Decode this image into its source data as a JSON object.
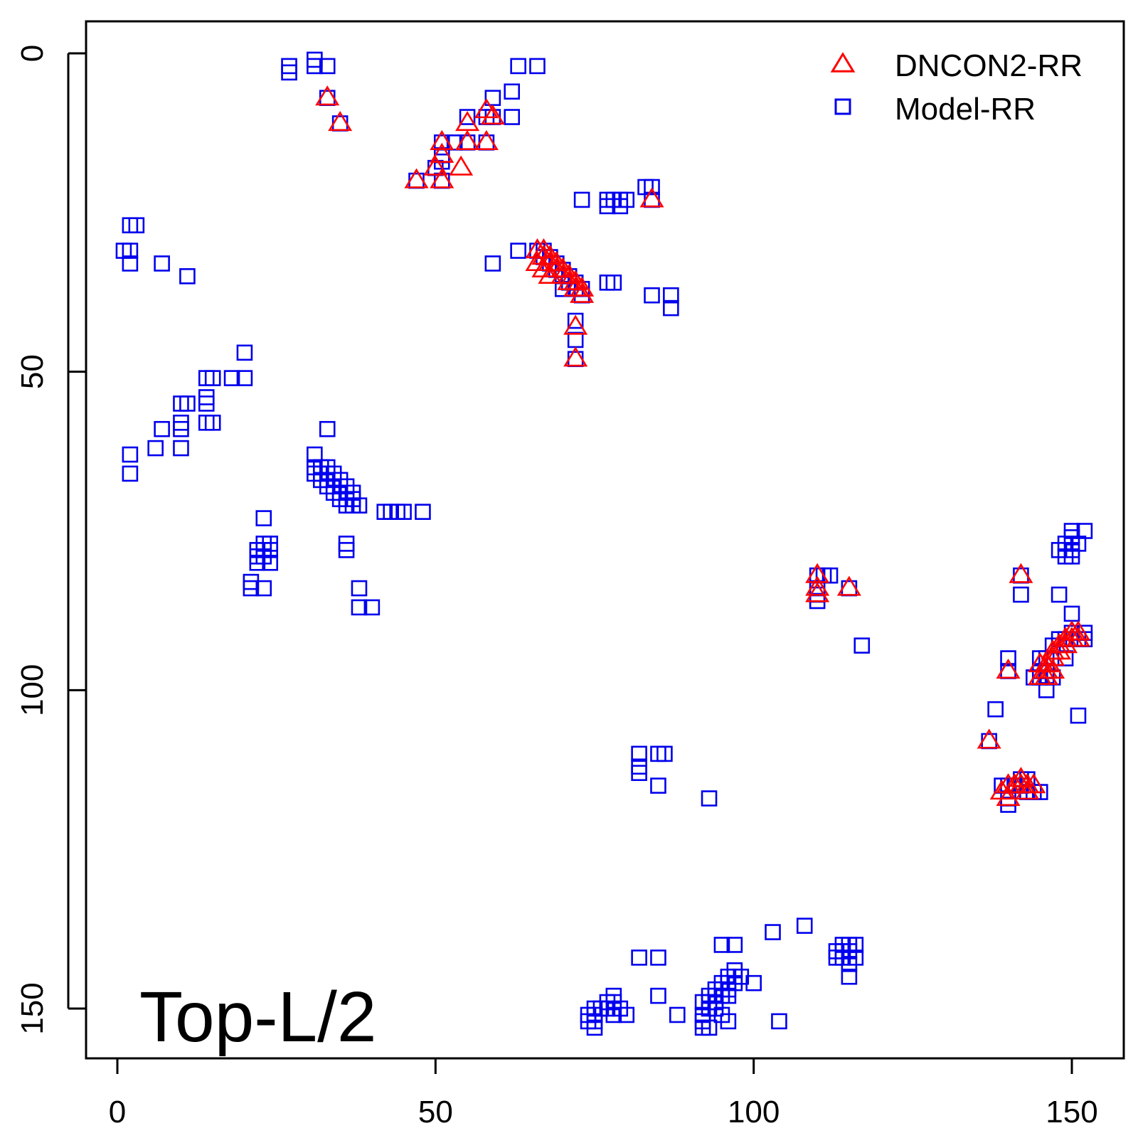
{
  "chart_data": {
    "type": "scatter",
    "title": "",
    "xlabel": "",
    "ylabel": "",
    "xlim": [
      -5,
      158
    ],
    "ylim": [
      -5,
      158
    ],
    "y_axis_reversed": true,
    "x_ticks": [
      0,
      50,
      100,
      150
    ],
    "y_ticks": [
      0,
      50,
      100,
      150
    ],
    "x_tick_labels": [
      "0",
      "50",
      "100",
      "150"
    ],
    "y_tick_labels": [
      "0",
      "50",
      "100",
      "150"
    ],
    "grid": false,
    "legend_position": "top-right",
    "annotation": "Top-L/2",
    "series": [
      {
        "name": "DNCON2-RR",
        "marker": "triangle",
        "color": "#ff0000",
        "points": [
          [
            33,
            7
          ],
          [
            35,
            11
          ],
          [
            51,
            14
          ],
          [
            51,
            16
          ],
          [
            55,
            11
          ],
          [
            55,
            14
          ],
          [
            58,
            9
          ],
          [
            59,
            10
          ],
          [
            58,
            14
          ],
          [
            50,
            18
          ],
          [
            51,
            20
          ],
          [
            54,
            18
          ],
          [
            47,
            20
          ],
          [
            84,
            23
          ],
          [
            66,
            31
          ],
          [
            67,
            31
          ],
          [
            67,
            32
          ],
          [
            68,
            32
          ],
          [
            68,
            33
          ],
          [
            69,
            33
          ],
          [
            69,
            34
          ],
          [
            70,
            34
          ],
          [
            70,
            35
          ],
          [
            71,
            35
          ],
          [
            71,
            36
          ],
          [
            72,
            36
          ],
          [
            72,
            37
          ],
          [
            73,
            37
          ],
          [
            73,
            38
          ],
          [
            66,
            33
          ],
          [
            67,
            34
          ],
          [
            68,
            35
          ],
          [
            72,
            43
          ],
          [
            72,
            48
          ],
          [
            110,
            82
          ],
          [
            110,
            84
          ],
          [
            110,
            85
          ],
          [
            115,
            84
          ],
          [
            142,
            82
          ],
          [
            140,
            97
          ],
          [
            137,
            108
          ],
          [
            145,
            96
          ],
          [
            146,
            96
          ],
          [
            146,
            97
          ],
          [
            147,
            95
          ],
          [
            147,
            94
          ],
          [
            148,
            93
          ],
          [
            148,
            94
          ],
          [
            149,
            92
          ],
          [
            149,
            93
          ],
          [
            150,
            91
          ],
          [
            150,
            92
          ],
          [
            151,
            91
          ],
          [
            151,
            92
          ],
          [
            146,
            98
          ],
          [
            145,
            98
          ],
          [
            147,
            97
          ],
          [
            139,
            116
          ],
          [
            140,
            115
          ],
          [
            141,
            115
          ],
          [
            142,
            114
          ],
          [
            142,
            115
          ],
          [
            143,
            115
          ],
          [
            143,
            116
          ],
          [
            140,
            117
          ],
          [
            144,
            115
          ]
        ]
      },
      {
        "name": "Model-RR",
        "marker": "square",
        "color": "#0000ee",
        "points": [
          [
            27,
            2
          ],
          [
            27,
            3
          ],
          [
            31,
            1
          ],
          [
            31,
            2
          ],
          [
            33,
            2
          ],
          [
            33,
            7
          ],
          [
            35,
            11
          ],
          [
            63,
            2
          ],
          [
            66,
            2
          ],
          [
            62,
            6
          ],
          [
            59,
            7
          ],
          [
            59,
            10
          ],
          [
            62,
            10
          ],
          [
            55,
            10
          ],
          [
            55,
            14
          ],
          [
            58,
            10
          ],
          [
            58,
            14
          ],
          [
            51,
            14
          ],
          [
            51,
            16
          ],
          [
            53,
            14
          ],
          [
            51,
            17
          ],
          [
            50,
            18
          ],
          [
            51,
            20
          ],
          [
            47,
            20
          ],
          [
            73,
            23
          ],
          [
            77,
            23
          ],
          [
            77,
            24
          ],
          [
            78,
            23
          ],
          [
            79,
            23
          ],
          [
            79,
            24
          ],
          [
            80,
            23
          ],
          [
            83,
            21
          ],
          [
            84,
            21
          ],
          [
            84,
            23
          ],
          [
            2,
            27
          ],
          [
            3,
            27
          ],
          [
            1,
            31
          ],
          [
            2,
            31
          ],
          [
            2,
            33
          ],
          [
            7,
            33
          ],
          [
            11,
            35
          ],
          [
            63,
            31
          ],
          [
            59,
            33
          ],
          [
            66,
            31
          ],
          [
            67,
            31
          ],
          [
            67,
            32
          ],
          [
            68,
            32
          ],
          [
            68,
            33
          ],
          [
            69,
            33
          ],
          [
            69,
            34
          ],
          [
            70,
            34
          ],
          [
            70,
            35
          ],
          [
            71,
            35
          ],
          [
            71,
            36
          ],
          [
            72,
            36
          ],
          [
            72,
            37
          ],
          [
            73,
            37
          ],
          [
            73,
            38
          ],
          [
            70,
            37
          ],
          [
            77,
            36
          ],
          [
            78,
            36
          ],
          [
            84,
            38
          ],
          [
            87,
            38
          ],
          [
            87,
            40
          ],
          [
            72,
            42
          ],
          [
            72,
            45
          ],
          [
            72,
            48
          ],
          [
            20,
            47
          ],
          [
            14,
            51
          ],
          [
            15,
            51
          ],
          [
            18,
            51
          ],
          [
            20,
            51
          ],
          [
            10,
            55
          ],
          [
            11,
            55
          ],
          [
            14,
            54
          ],
          [
            14,
            55
          ],
          [
            10,
            58
          ],
          [
            14,
            58
          ],
          [
            15,
            58
          ],
          [
            7,
            59
          ],
          [
            10,
            59
          ],
          [
            6,
            62
          ],
          [
            10,
            62
          ],
          [
            2,
            63
          ],
          [
            2,
            66
          ],
          [
            33,
            59
          ],
          [
            31,
            63
          ],
          [
            31,
            65
          ],
          [
            32,
            65
          ],
          [
            33,
            65
          ],
          [
            31,
            66
          ],
          [
            32,
            66
          ],
          [
            33,
            66
          ],
          [
            34,
            66
          ],
          [
            32,
            67
          ],
          [
            33,
            67
          ],
          [
            35,
            67
          ],
          [
            33,
            68
          ],
          [
            34,
            68
          ],
          [
            36,
            68
          ],
          [
            34,
            69
          ],
          [
            35,
            69
          ],
          [
            37,
            69
          ],
          [
            35,
            70
          ],
          [
            36,
            70
          ],
          [
            37,
            70
          ],
          [
            36,
            71
          ],
          [
            37,
            71
          ],
          [
            38,
            71
          ],
          [
            42,
            72
          ],
          [
            43,
            72
          ],
          [
            44,
            72
          ],
          [
            45,
            72
          ],
          [
            48,
            72
          ],
          [
            23,
            73
          ],
          [
            23,
            77
          ],
          [
            24,
            77
          ],
          [
            22,
            78
          ],
          [
            23,
            78
          ],
          [
            24,
            78
          ],
          [
            22,
            79
          ],
          [
            23,
            79
          ],
          [
            22,
            80
          ],
          [
            24,
            80
          ],
          [
            21,
            83
          ],
          [
            21,
            84
          ],
          [
            23,
            84
          ],
          [
            36,
            77
          ],
          [
            36,
            78
          ],
          [
            38,
            84
          ],
          [
            38,
            87
          ],
          [
            40,
            87
          ],
          [
            110,
            82
          ],
          [
            111,
            82
          ],
          [
            112,
            82
          ],
          [
            110,
            84
          ],
          [
            110,
            85
          ],
          [
            110,
            86
          ],
          [
            115,
            84
          ],
          [
            117,
            93
          ],
          [
            150,
            75
          ],
          [
            150,
            76
          ],
          [
            152,
            75
          ],
          [
            149,
            77
          ],
          [
            151,
            77
          ],
          [
            148,
            78
          ],
          [
            150,
            78
          ],
          [
            149,
            79
          ],
          [
            150,
            79
          ],
          [
            142,
            82
          ],
          [
            142,
            85
          ],
          [
            148,
            85
          ],
          [
            150,
            88
          ],
          [
            140,
            95
          ],
          [
            140,
            97
          ],
          [
            145,
            95
          ],
          [
            146,
            95
          ],
          [
            145,
            97
          ],
          [
            146,
            97
          ],
          [
            144,
            98
          ],
          [
            145,
            98
          ],
          [
            146,
            98
          ],
          [
            147,
            98
          ],
          [
            146,
            100
          ],
          [
            147,
            93
          ],
          [
            148,
            92
          ],
          [
            149,
            92
          ],
          [
            150,
            91
          ],
          [
            151,
            92
          ],
          [
            152,
            91
          ],
          [
            152,
            92
          ],
          [
            149,
            95
          ],
          [
            138,
            103
          ],
          [
            151,
            104
          ],
          [
            137,
            108
          ],
          [
            82,
            110
          ],
          [
            82,
            112
          ],
          [
            82,
            113
          ],
          [
            85,
            110
          ],
          [
            86,
            110
          ],
          [
            85,
            115
          ],
          [
            93,
            117
          ],
          [
            139,
            115
          ],
          [
            140,
            115
          ],
          [
            141,
            115
          ],
          [
            142,
            114
          ],
          [
            142,
            115
          ],
          [
            143,
            114
          ],
          [
            143,
            116
          ],
          [
            140,
            117
          ],
          [
            140,
            118
          ],
          [
            145,
            116
          ],
          [
            144,
            116
          ],
          [
            103,
            138
          ],
          [
            108,
            137
          ],
          [
            95,
            140
          ],
          [
            97,
            140
          ],
          [
            82,
            142
          ],
          [
            85,
            142
          ],
          [
            114,
            140
          ],
          [
            115,
            140
          ],
          [
            116,
            140
          ],
          [
            113,
            141
          ],
          [
            114,
            141
          ],
          [
            115,
            141
          ],
          [
            113,
            142
          ],
          [
            114,
            142
          ],
          [
            116,
            142
          ],
          [
            115,
            143
          ],
          [
            115,
            145
          ],
          [
            97,
            144
          ],
          [
            96,
            145
          ],
          [
            97,
            145
          ],
          [
            98,
            145
          ],
          [
            95,
            146
          ],
          [
            96,
            146
          ],
          [
            97,
            146
          ],
          [
            100,
            146
          ],
          [
            94,
            147
          ],
          [
            95,
            147
          ],
          [
            96,
            147
          ],
          [
            95,
            148
          ],
          [
            96,
            148
          ],
          [
            85,
            148
          ],
          [
            93,
            148
          ],
          [
            94,
            148
          ],
          [
            92,
            149
          ],
          [
            93,
            149
          ],
          [
            94,
            149
          ],
          [
            93,
            150
          ],
          [
            94,
            150
          ],
          [
            78,
            148
          ],
          [
            78,
            149
          ],
          [
            77,
            149
          ],
          [
            76,
            150
          ],
          [
            77,
            150
          ],
          [
            79,
            150
          ],
          [
            75,
            150
          ],
          [
            75,
            151
          ],
          [
            78,
            151
          ],
          [
            80,
            151
          ],
          [
            88,
            151
          ],
          [
            92,
            151
          ],
          [
            95,
            151
          ],
          [
            74,
            151
          ],
          [
            74,
            152
          ],
          [
            75,
            152
          ],
          [
            75,
            153
          ],
          [
            92,
            152
          ],
          [
            92,
            153
          ],
          [
            93,
            153
          ],
          [
            96,
            152
          ],
          [
            104,
            152
          ]
        ]
      }
    ]
  }
}
